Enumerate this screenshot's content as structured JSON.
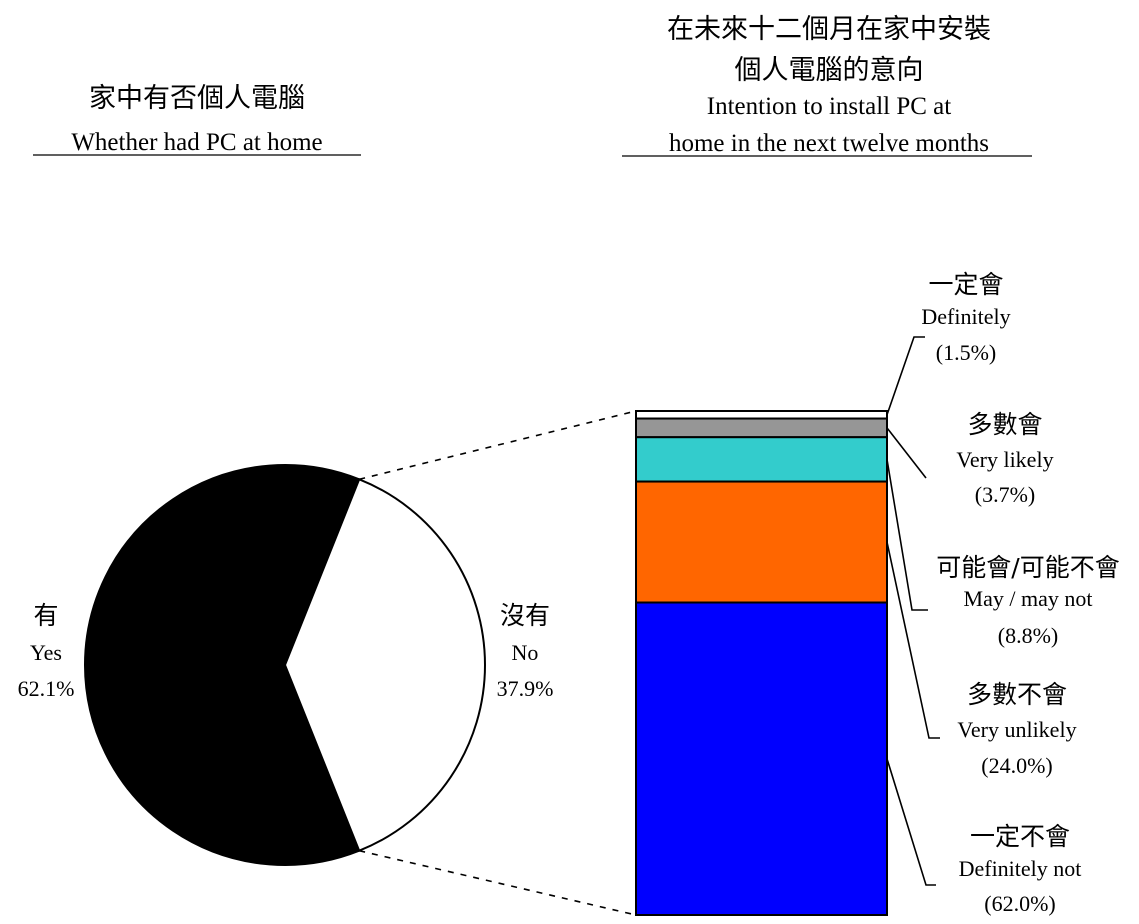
{
  "chart_data": [
    {
      "type": "pie",
      "title_zh": "家中有否個人電腦",
      "title_en": "Whether had PC at home",
      "slices": [
        {
          "label_zh": "有",
          "label_en": "Yes",
          "pct_label": "62.1%",
          "value": 62.1,
          "color": "#000000"
        },
        {
          "label_zh": "沒有",
          "label_en": "No",
          "pct_label": "37.9%",
          "value": 37.9,
          "color": "#ffffff"
        }
      ]
    },
    {
      "type": "bar",
      "stacked": true,
      "title_zh_lines": [
        "在未來十二個月在家中安裝",
        "個人電腦的意向"
      ],
      "title_en_lines": [
        "Intention to install PC at",
        "home in the next twelve months"
      ],
      "segments": [
        {
          "label_zh": "一定會",
          "label_en": "Definitely",
          "pct_label": "(1.5%)",
          "value": 1.5,
          "color": "#ffffff"
        },
        {
          "label_zh": "多數會",
          "label_en": "Very likely",
          "pct_label": "(3.7%)",
          "value": 3.7,
          "color": "#969696"
        },
        {
          "label_zh": "可能會/可能不會",
          "label_en": "May / may not",
          "pct_label": "(8.8%)",
          "value": 8.8,
          "color": "#33cccc"
        },
        {
          "label_zh": "多數不會",
          "label_en": "Very unlikely",
          "pct_label": "(24.0%)",
          "value": 24.0,
          "color": "#ff6600"
        },
        {
          "label_zh": "一定不會",
          "label_en": "Definitely not",
          "pct_label": "(62.0%)",
          "value": 62.0,
          "color": "#0000ff"
        }
      ]
    }
  ]
}
